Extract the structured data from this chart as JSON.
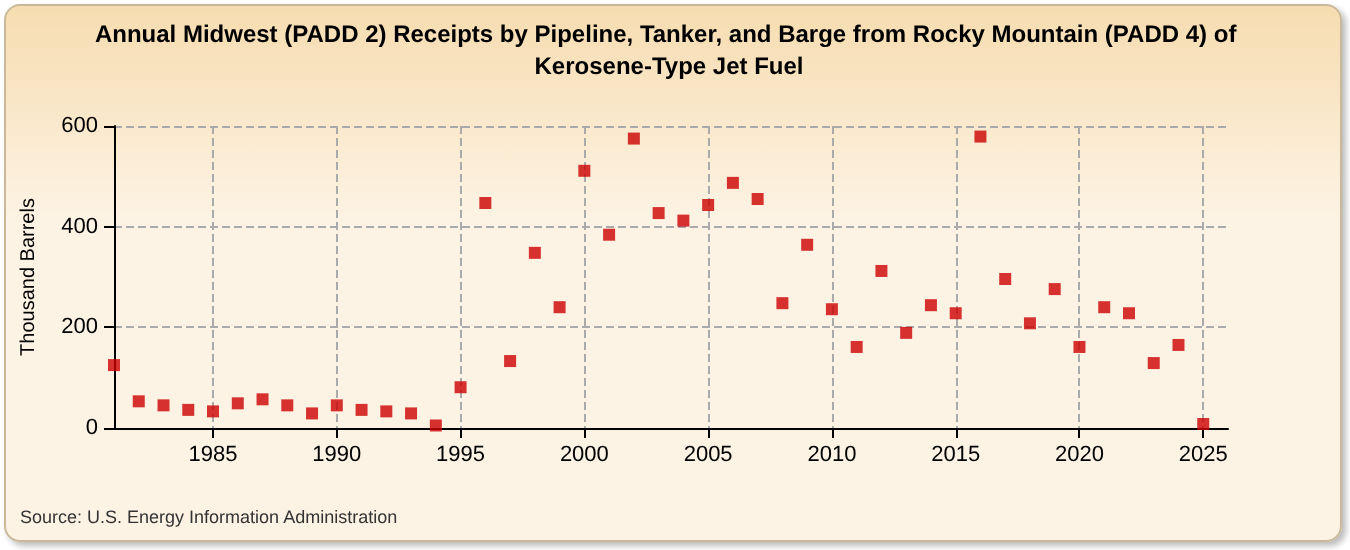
{
  "chart_data": {
    "type": "scatter",
    "title": "Annual Midwest (PADD 2) Receipts by Pipeline, Tanker, and Barge from Rocky Mountain (PADD 4) of Kerosene-Type Jet Fuel",
    "ylabel": "Thousand Barrels",
    "annotations": [
      "Source: U.S. Energy Information Administration"
    ],
    "x": [
      1981,
      1982,
      1983,
      1984,
      1985,
      1986,
      1987,
      1988,
      1989,
      1990,
      1991,
      1992,
      1993,
      1994,
      1995,
      1996,
      1997,
      1998,
      1999,
      2000,
      2001,
      2002,
      2003,
      2004,
      2005,
      2006,
      2007,
      2008,
      2009,
      2010,
      2011,
      2012,
      2013,
      2014,
      2015,
      2016,
      2017,
      2018,
      2019,
      2020,
      2021,
      2022,
      2023,
      2024,
      2025
    ],
    "series": [
      {
        "color": "#cc0000",
        "values": [
          125,
          53,
          45,
          36,
          33,
          49,
          57,
          45,
          29,
          45,
          36,
          33,
          29,
          5,
          81,
          447,
          133,
          348,
          240,
          511,
          384,
          575,
          427,
          412,
          443,
          487,
          455,
          248,
          364,
          236,
          161,
          312,
          189,
          244,
          228,
          579,
          296,
          208,
          276,
          161,
          240,
          228,
          129,
          165,
          8
        ]
      }
    ],
    "xlim": [
      1981,
      2026
    ],
    "xticks": [
      1985,
      1990,
      1995,
      2000,
      2005,
      2010,
      2015,
      2020,
      2025
    ],
    "ylim": [
      0,
      600
    ],
    "yticks": [
      0,
      200,
      400,
      600
    ],
    "grid": true,
    "marker": "square"
  }
}
